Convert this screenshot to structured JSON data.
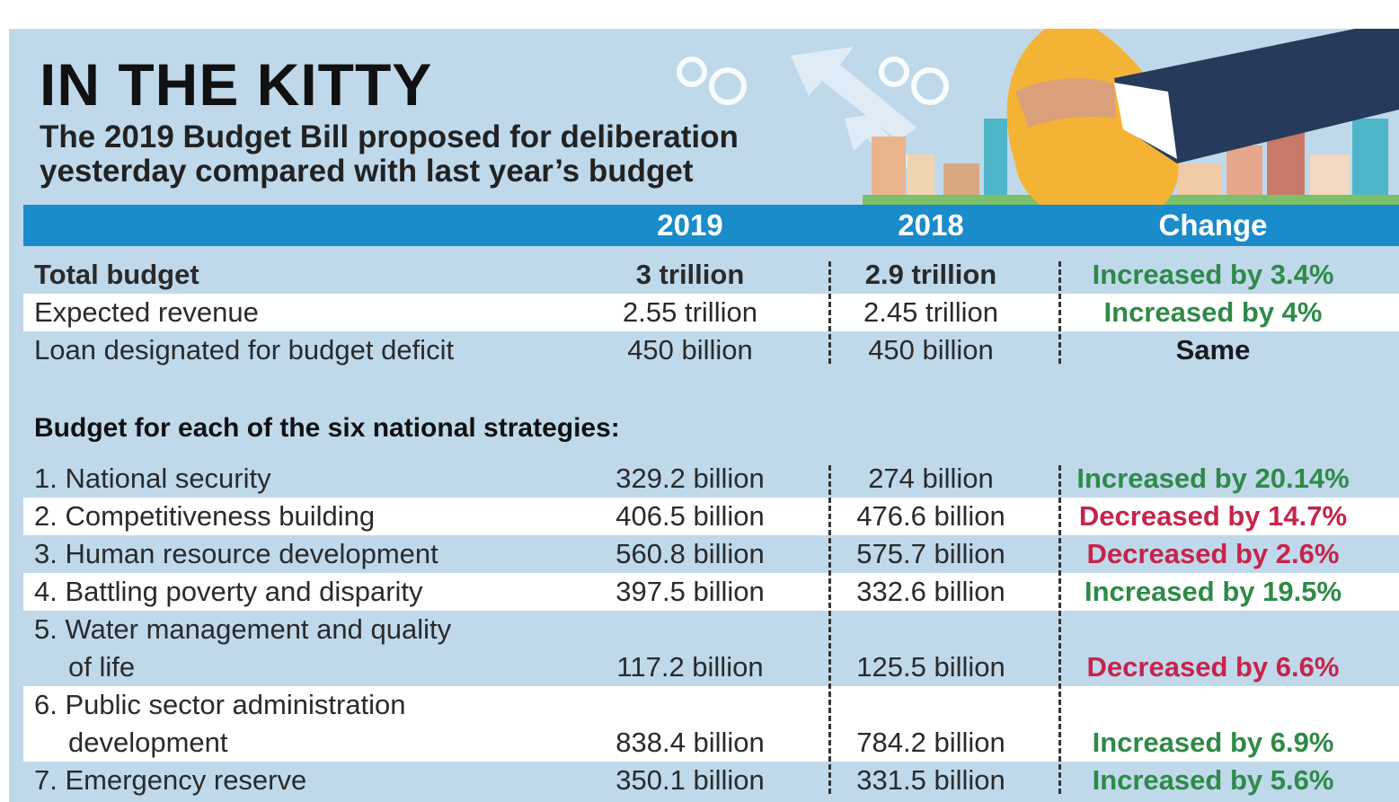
{
  "header": {
    "title": "IN THE KITTY",
    "subtitle_lines": [
      "The 2019 Budget Bill proposed for deliberation",
      "yesterday compared with last year’s budget"
    ]
  },
  "table": {
    "columns": [
      "2019",
      "2018",
      "Change"
    ],
    "summary": [
      {
        "label": [
          "Total budget"
        ],
        "y2019": "3 trillion",
        "y2018": "2.9 trillion",
        "change": "Increased by 3.4%",
        "color": "#2e8a48",
        "bold": true
      },
      {
        "label": [
          "Expected revenue"
        ],
        "y2019": "2.55 trillion",
        "y2018": "2.45 trillion",
        "change": "Increased by 4%",
        "color": "#2e8a48",
        "bold": false
      },
      {
        "label": [
          "Loan designated for budget deficit"
        ],
        "y2019": "450 billion",
        "y2018": "450 billion",
        "change": "Same",
        "color": "#1a1a1a",
        "bold": false
      }
    ],
    "section_title": "Budget for each of the six national strategies:",
    "strategies": [
      {
        "label": [
          "1. National security"
        ],
        "y2019": "329.2 billion",
        "y2018": "274 billion",
        "change": "Increased by 20.14%",
        "color": "#2e8a48"
      },
      {
        "label": [
          "2. Competitiveness building"
        ],
        "y2019": "406.5 billion",
        "y2018": "476.6 billion",
        "change": "Decreased by 14.7%",
        "color": "#c6244b"
      },
      {
        "label": [
          "3. Human resource development"
        ],
        "y2019": "560.8 billion",
        "y2018": "575.7 billion",
        "change": "Decreased by 2.6%",
        "color": "#c6244b"
      },
      {
        "label": [
          "4. Battling poverty and disparity"
        ],
        "y2019": "397.5 billion",
        "y2018": "332.6 billion",
        "change": "Increased by 19.5%",
        "color": "#2e8a48"
      },
      {
        "label": [
          "5. Water management and quality",
          "of life"
        ],
        "y2019": "117.2 billion",
        "y2018": "125.5 billion",
        "change": "Decreased by 6.6%",
        "color": "#c6244b"
      },
      {
        "label": [
          "6. Public sector administration",
          "development"
        ],
        "y2019": "838.4 billion",
        "y2018": "784.2 billion",
        "change": "Increased by 6.9%",
        "color": "#2e8a48"
      },
      {
        "label": [
          "7. Emergency reserve"
        ],
        "y2019": "350.1 billion",
        "y2018": "331.5 billion",
        "change": "Increased by 5.6%",
        "color": "#2e8a48"
      }
    ]
  }
}
